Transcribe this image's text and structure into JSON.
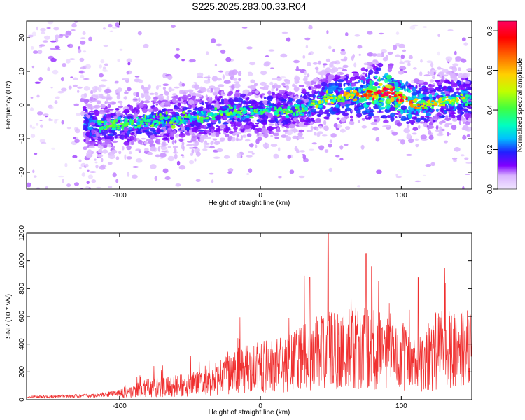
{
  "title": "S225.2025.283.00.33.R04",
  "chart_data": [
    {
      "type": "heatmap",
      "xlabel": "Height of straight line (km)",
      "ylabel": "Frequency (Hz)",
      "xlim": [
        -166,
        150
      ],
      "ylim": [
        -25,
        25
      ],
      "xticks": [
        -100,
        0,
        100
      ],
      "xtick_labels": [
        "-100",
        "0",
        "100"
      ],
      "yticks": [
        -20,
        -10,
        0,
        10,
        20
      ],
      "ytick_labels": [
        "-20",
        "-10",
        "0",
        "10",
        "20"
      ],
      "colorbar": {
        "label": "Normalized spectral amplitude",
        "range": [
          0,
          0.85
        ],
        "ticks": [
          0,
          0.2,
          0.4,
          0.6,
          0.8
        ],
        "tick_labels": [
          "0.0",
          "0.2",
          "0.4",
          "0.6",
          "0.8"
        ],
        "colors": [
          "#f0e6ff",
          "#d9b3ff",
          "#8000ff",
          "#2020ff",
          "#00c0ff",
          "#00ffc0",
          "#40ff40",
          "#c0ff00",
          "#ffd000",
          "#ff6000",
          "#ff0000",
          "#ff0060"
        ]
      },
      "ridge_trend": [
        {
          "x": -110,
          "y": -6,
          "amp": 0.25
        },
        {
          "x": -80,
          "y": -5,
          "amp": 0.25
        },
        {
          "x": -50,
          "y": -4,
          "amp": 0.25
        },
        {
          "x": -20,
          "y": -2,
          "amp": 0.25
        },
        {
          "x": 0,
          "y": -2,
          "amp": 0.25
        },
        {
          "x": 30,
          "y": -1,
          "amp": 0.25
        },
        {
          "x": 50,
          "y": 2,
          "amp": 0.3
        },
        {
          "x": 70,
          "y": 3,
          "amp": 0.35
        },
        {
          "x": 90,
          "y": 4,
          "amp": 0.6
        },
        {
          "x": 110,
          "y": 0,
          "amp": 0.35
        },
        {
          "x": 130,
          "y": 1,
          "amp": 0.3
        },
        {
          "x": 147,
          "y": 2,
          "amp": 0.3
        }
      ]
    },
    {
      "type": "line",
      "xlabel": "Height of straight line (km)",
      "ylabel": "SNR (10 * v/v)",
      "xlim": [
        -166,
        150
      ],
      "ylim": [
        0,
        1200
      ],
      "xticks": [
        -100,
        0,
        100
      ],
      "xtick_labels": [
        "-100",
        "0",
        "100"
      ],
      "yticks": [
        0,
        200,
        400,
        600,
        800,
        1000,
        1200
      ],
      "ytick_labels": [
        "0",
        "200",
        "400",
        "600",
        "800",
        "1000",
        "1200"
      ],
      "color": "#f03030",
      "envelope": [
        {
          "x": -166,
          "y": 20
        },
        {
          "x": -120,
          "y": 30
        },
        {
          "x": -100,
          "y": 50
        },
        {
          "x": -80,
          "y": 110
        },
        {
          "x": -60,
          "y": 130
        },
        {
          "x": -40,
          "y": 150
        },
        {
          "x": -30,
          "y": 200
        },
        {
          "x": -20,
          "y": 270
        },
        {
          "x": 0,
          "y": 300
        },
        {
          "x": 20,
          "y": 350
        },
        {
          "x": 40,
          "y": 430
        },
        {
          "x": 60,
          "y": 470
        },
        {
          "x": 80,
          "y": 480
        },
        {
          "x": 100,
          "y": 430
        },
        {
          "x": 110,
          "y": 300
        },
        {
          "x": 125,
          "y": 460
        },
        {
          "x": 140,
          "y": 450
        },
        {
          "x": 150,
          "y": 470
        }
      ],
      "peaks": [
        {
          "x": 35,
          "y": 880
        },
        {
          "x": 48,
          "y": 1200
        },
        {
          "x": 75,
          "y": 1050
        },
        {
          "x": 79,
          "y": 960
        },
        {
          "x": 112,
          "y": 880
        }
      ]
    }
  ]
}
